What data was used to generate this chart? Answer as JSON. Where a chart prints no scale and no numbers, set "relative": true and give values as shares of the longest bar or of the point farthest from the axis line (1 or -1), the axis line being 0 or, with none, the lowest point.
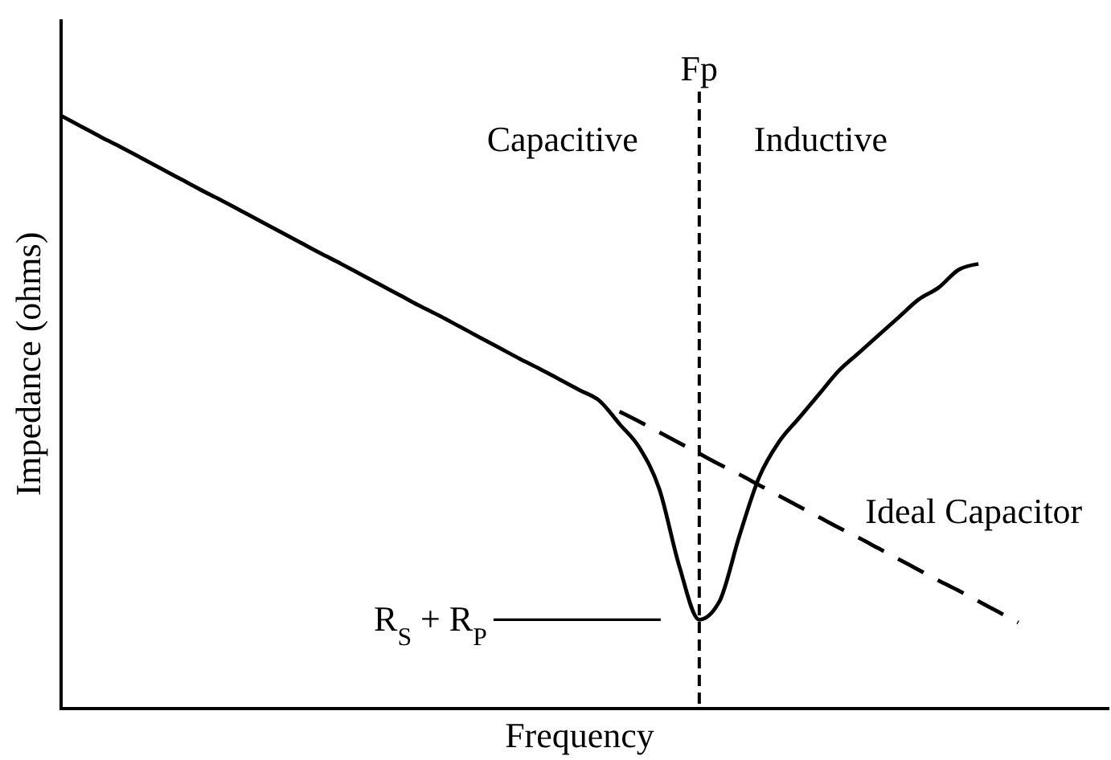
{
  "chart_data": {
    "type": "line",
    "relative": true,
    "categories": [
      null,
      null,
      null,
      null,
      null,
      null,
      null,
      null,
      null,
      null,
      null,
      null,
      null,
      null,
      null,
      null,
      null,
      null,
      null,
      null,
      null,
      null,
      null,
      null,
      null,
      null,
      null,
      null,
      null,
      null,
      null,
      null,
      null,
      null,
      null,
      null,
      null,
      null,
      null,
      null,
      null,
      null,
      null,
      null,
      null,
      null,
      null,
      null,
      null,
      null,
      null,
      null,
      null
    ],
    "series": [
      {
        "color": "#000000",
        "line_style": "solid",
        "values": [
          1,
          0.982,
          0.964,
          0.947,
          0.929,
          0.911,
          0.893,
          0.875,
          0.858,
          0.84,
          0.822,
          0.804,
          0.786,
          0.768,
          0.751,
          0.733,
          0.715,
          0.697,
          0.679,
          0.662,
          0.644,
          0.626,
          0.608,
          0.59,
          0.573,
          0.555,
          0.537,
          0.519,
          0.48,
          0.44,
          0.37,
          0.24,
          0.15,
          0.18,
          0.29,
          0.39,
          0.45,
          0.49,
          0.53,
          0.57,
          0.6,
          0.63,
          0.66,
          0.69,
          0.71,
          0.74,
          0.75,
          null,
          null,
          null,
          null,
          null,
          null
        ]
      },
      {
        "name": "Ideal Capacitor",
        "color": "#000000",
        "line_style": "dashed",
        "values": [
          null,
          null,
          null,
          null,
          null,
          null,
          null,
          null,
          null,
          null,
          null,
          null,
          null,
          null,
          null,
          null,
          null,
          null,
          null,
          null,
          null,
          null,
          null,
          null,
          null,
          null,
          null,
          null,
          0.501,
          0.484,
          0.466,
          0.448,
          0.43,
          0.412,
          0.395,
          0.377,
          0.359,
          0.341,
          0.323,
          0.305,
          0.288,
          0.27,
          0.252,
          0.234,
          0.216,
          0.199,
          0.181,
          0.163,
          0.145,
          null,
          null,
          null,
          null
        ]
      }
    ],
    "xlabel": "Frequency",
    "ylabel": "Impedance (ohms)",
    "annotations": [
      "Fp",
      "Capacitive",
      "Inductive",
      "R$_{S}$ + R$_{P}$"
    ]
  }
}
